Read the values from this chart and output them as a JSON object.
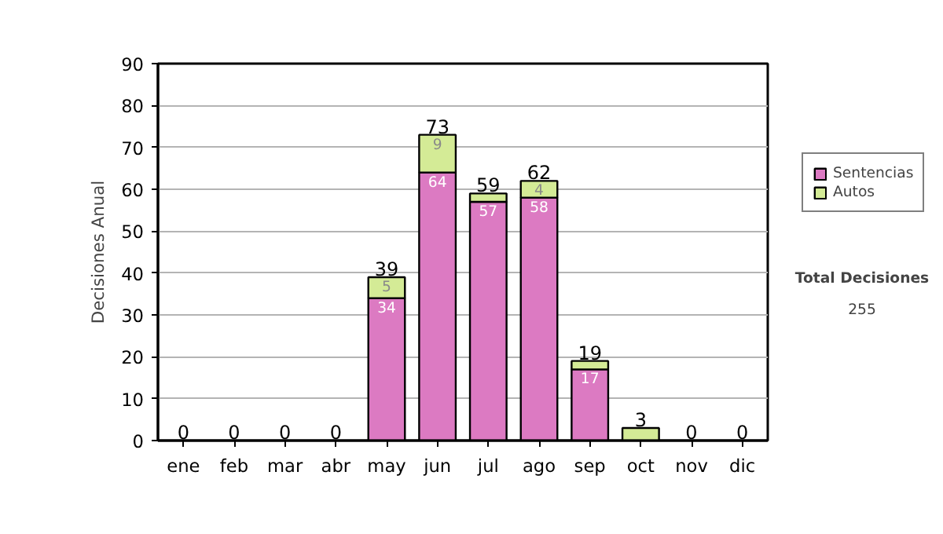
{
  "chart_data": {
    "type": "bar",
    "stacked": true,
    "ylabel": "Decisiones Anual",
    "categories": [
      "ene",
      "feb",
      "mar",
      "abr",
      "may",
      "jun",
      "jul",
      "ago",
      "sep",
      "oct",
      "nov",
      "dic"
    ],
    "series": [
      {
        "name": "Sentencias",
        "color": "#dc7ac2",
        "values": [
          0,
          0,
          0,
          0,
          34,
          64,
          57,
          58,
          17,
          0,
          0,
          0
        ],
        "value_labels": [
          null,
          null,
          null,
          null,
          "34",
          "64",
          "57",
          "58",
          "17",
          null,
          null,
          null
        ]
      },
      {
        "name": "Autos",
        "color": "#d4eb96",
        "values": [
          0,
          0,
          0,
          0,
          5,
          9,
          2,
          4,
          2,
          3,
          0,
          0
        ],
        "value_labels": [
          null,
          null,
          null,
          null,
          "5",
          "9",
          null,
          "4",
          null,
          null,
          null,
          null
        ]
      }
    ],
    "totals": [
      "0",
      "0",
      "0",
      "0",
      "39",
      "73",
      "59",
      "62",
      "19",
      "3",
      "0",
      "0"
    ],
    "ylim": [
      0,
      90
    ],
    "yticks": [
      0,
      10,
      20,
      30,
      40,
      50,
      60,
      70,
      80,
      90
    ],
    "grid": "y",
    "legend": "right",
    "annotations": [
      "Total Decisiones",
      "255"
    ]
  }
}
